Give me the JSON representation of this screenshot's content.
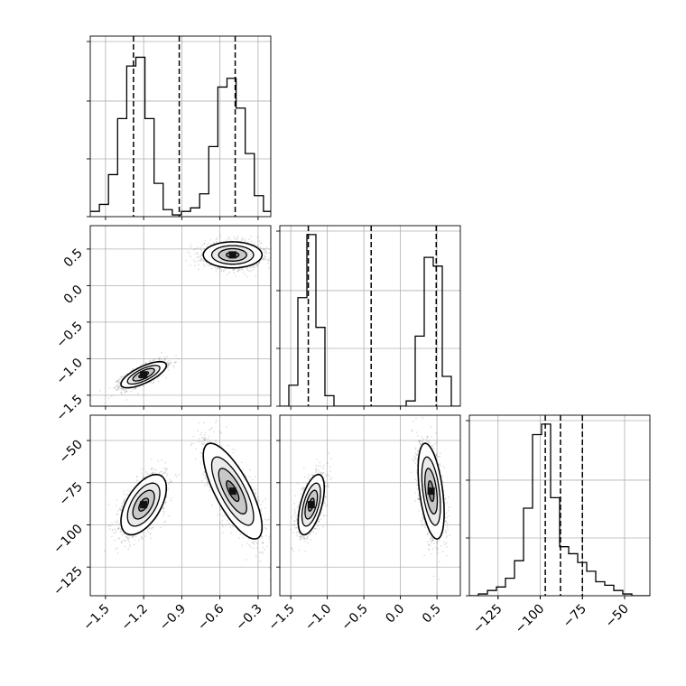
{
  "chart_data": {
    "type": "corner",
    "grid": true,
    "parameters": [
      "",
      "",
      ""
    ],
    "ranges": {
      "p1": [
        -1.62,
        -0.2
      ],
      "p2": [
        -1.65,
        0.82
      ],
      "p3": [
        -142,
        -35
      ]
    },
    "ticks": {
      "p1": [
        -1.5,
        -1.2,
        -0.9,
        -0.6,
        -0.3
      ],
      "p1_labels": [
        "−1.5",
        "−1.2",
        "−0.9",
        "−0.6",
        "−0.3"
      ],
      "p2": [
        -1.5,
        -1.0,
        -0.5,
        0.0,
        0.5
      ],
      "p2_labels": [
        "−1.5",
        "−1.0",
        "−0.5",
        "0.0",
        "0.5"
      ],
      "p3": [
        -125,
        -100,
        -75,
        -50
      ],
      "p3_labels": [
        "−125",
        "−100",
        "−75",
        "−50"
      ]
    },
    "histograms": [
      {
        "param": "p1",
        "edges": [
          -1.62,
          -1.5483,
          -1.4766,
          -1.4049,
          -1.3332,
          -1.2615,
          -1.1898,
          -1.1181,
          -1.0464,
          -0.9747,
          -0.903,
          -0.8313,
          -0.7596,
          -0.6879,
          -0.6162,
          -0.5445,
          -0.4728,
          -0.4011,
          -0.3294,
          -0.2577,
          -0.2
        ],
        "counts": [
          0.03,
          0.07,
          0.24,
          0.56,
          0.86,
          0.91,
          0.56,
          0.19,
          0.04,
          0.01,
          0.03,
          0.05,
          0.13,
          0.4,
          0.74,
          0.79,
          0.62,
          0.36,
          0.12,
          0.03
        ],
        "quantiles": [
          -1.28,
          -0.92,
          -0.48
        ],
        "yticks_norm": [
          0.0,
          0.33,
          0.66,
          1.0
        ]
      },
      {
        "param": "p2",
        "edges": [
          -1.65,
          -1.5265,
          -1.403,
          -1.2795,
          -1.156,
          -1.0325,
          -0.909,
          -0.7855,
          -0.662,
          -0.5385,
          -0.415,
          -0.2915,
          -0.168,
          -0.0445,
          0.079,
          0.2025,
          0.326,
          0.4495,
          0.573,
          0.6965,
          0.82
        ],
        "counts": [
          0.0,
          0.12,
          0.62,
          0.98,
          0.45,
          0.06,
          0.0,
          0.0,
          0.0,
          0.0,
          0.0,
          0.0,
          0.0,
          0.0,
          0.03,
          0.4,
          0.85,
          0.8,
          0.17,
          0.0
        ],
        "quantiles": [
          -1.26,
          -0.4,
          0.49
        ],
        "yticks_norm": [
          0.0,
          0.33,
          0.66,
          1.0
        ]
      },
      {
        "param": "p3",
        "edges": [
          -142,
          -136.65,
          -131.3,
          -125.95,
          -120.6,
          -115.25,
          -109.9,
          -104.55,
          -99.2,
          -93.85,
          -88.5,
          -83.15,
          -77.8,
          -72.45,
          -67.1,
          -61.75,
          -56.4,
          -51.05,
          -45.7,
          -40.35,
          -35
        ],
        "counts": [
          0.0,
          0.01,
          0.03,
          0.05,
          0.1,
          0.2,
          0.5,
          0.92,
          0.98,
          0.56,
          0.28,
          0.24,
          0.19,
          0.14,
          0.08,
          0.06,
          0.03,
          0.01,
          0.0,
          0.0
        ],
        "quantiles": [
          -97,
          -88,
          -75
        ],
        "yticks_norm": [
          0.0,
          0.33,
          0.66,
          1.0
        ]
      }
    ],
    "scatter_panels": [
      {
        "x": "p1",
        "y": "p2",
        "clusters": [
          {
            "center": [
              -1.2,
              -1.22
            ],
            "sd": [
              0.085,
              0.085
            ],
            "rho": 0.72,
            "n": 1700
          },
          {
            "center": [
              -0.5,
              0.42
            ],
            "sd": [
              0.11,
              0.085
            ],
            "rho": 0.0,
            "n": 1700
          }
        ]
      },
      {
        "x": "p1",
        "y": "p3",
        "clusters": [
          {
            "center": [
              -1.2,
              -88
            ],
            "sd": [
              0.085,
              8.5
            ],
            "rho": 0.55,
            "n": 1700
          },
          {
            "center": [
              -0.5,
              -80
            ],
            "sd": [
              0.11,
              13.5
            ],
            "rho": -0.75,
            "n": 1700
          }
        ]
      },
      {
        "x": "p2",
        "y": "p3",
        "clusters": [
          {
            "center": [
              -1.22,
              -88
            ],
            "sd": [
              0.085,
              8.5
            ],
            "rho": 0.55,
            "n": 1700
          },
          {
            "center": [
              0.42,
              -80
            ],
            "sd": [
              0.085,
              13.5
            ],
            "rho": -0.45,
            "n": 1700
          }
        ]
      }
    ]
  }
}
